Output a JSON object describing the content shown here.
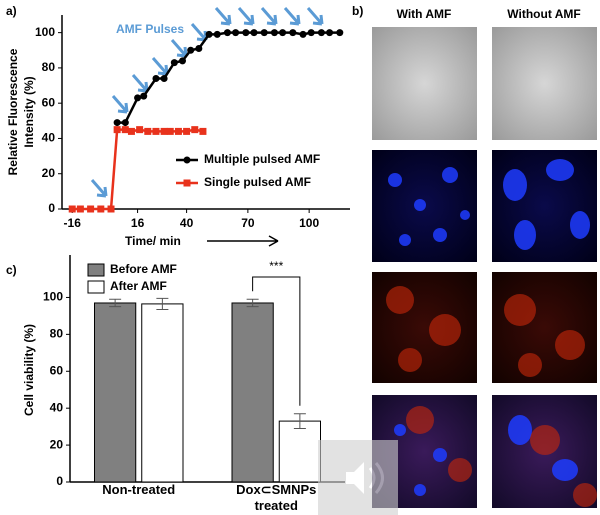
{
  "panels": {
    "a": "a)",
    "b": "b)",
    "c": "c)"
  },
  "images": {
    "columns": [
      "With AMF",
      "Without AMF"
    ]
  },
  "chart_data": [
    {
      "type": "line",
      "xlabel": "Time/ min",
      "ylabel": [
        "Relative Fluorescence",
        "Intensity (%)"
      ],
      "annotation": "AMF Pulses",
      "xlim": [
        -21,
        120
      ],
      "xticks": [
        -16,
        16,
        40,
        70,
        100
      ],
      "ylim": [
        0,
        110
      ],
      "yticks": [
        0,
        20,
        40,
        60,
        80,
        100
      ],
      "legend": "center-right",
      "series": [
        {
          "name": "Multiple pulsed AMF",
          "color": "#000000",
          "marker": "circle",
          "x": [
            6,
            10,
            16,
            19,
            25,
            29,
            34,
            38,
            42,
            46,
            51,
            55,
            60,
            64,
            69,
            73,
            78,
            83,
            87,
            92,
            97,
            101,
            106,
            110,
            115
          ],
          "values": [
            49,
            49,
            63,
            64,
            74,
            74,
            83,
            84,
            90,
            91,
            99,
            99,
            100,
            100,
            100,
            100,
            100,
            100,
            100,
            100,
            99,
            100,
            100,
            100,
            100
          ]
        },
        {
          "name": "Single pulsed AMF",
          "color": "#e8321c",
          "marker": "square",
          "x": [
            -16,
            -12,
            -7,
            -2,
            3,
            6,
            10,
            13,
            17,
            21,
            25,
            29,
            32,
            36,
            40,
            44,
            48
          ],
          "values": [
            0,
            0,
            0,
            0,
            0,
            45,
            45,
            44,
            45,
            44,
            44,
            44,
            44,
            44,
            44,
            45,
            44
          ]
        }
      ]
    },
    {
      "type": "bar",
      "ylabel": "Cell viability (%)",
      "categories": [
        "Non-treated",
        "Dox⊂SMNPs treated"
      ],
      "ylim": [
        0,
        123
      ],
      "yticks": [
        0,
        20,
        40,
        60,
        80,
        100
      ],
      "legend": "upper-left",
      "annotation": "***",
      "series": [
        {
          "name": "Before AMF",
          "color": "#808080",
          "values": [
            97,
            97
          ],
          "errors": [
            2,
            2
          ]
        },
        {
          "name": "After AMF",
          "color": "#ffffff",
          "values": [
            96.5,
            33
          ],
          "errors": [
            3,
            4
          ]
        }
      ]
    }
  ]
}
